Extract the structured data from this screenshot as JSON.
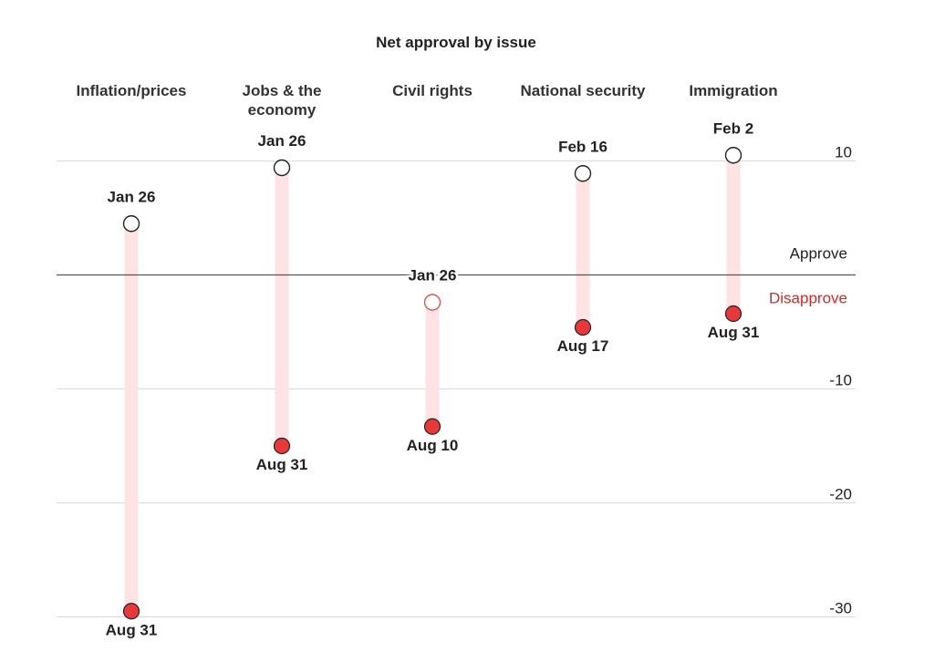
{
  "chart_data": {
    "type": "dumbbell",
    "title": "Net approval by issue",
    "ylim": [
      -30,
      10
    ],
    "yticks": [
      10,
      -10,
      -20,
      -30
    ],
    "grid": true,
    "reference": {
      "value": 0,
      "above_label": "Approve",
      "below_label": "Disapprove"
    },
    "categories": [
      {
        "name": [
          "Inflation/prices"
        ],
        "start": {
          "date": "Jan 26",
          "value": 4.5
        },
        "end": {
          "date": "Aug 31",
          "value": -29.5
        }
      },
      {
        "name": [
          "Jobs & the",
          "economy"
        ],
        "start": {
          "date": "Jan 26",
          "value": 9.4
        },
        "end": {
          "date": "Aug 31",
          "value": -15.0
        }
      },
      {
        "name": [
          "Civil rights"
        ],
        "start": {
          "date": "Jan 26",
          "value": -2.4
        },
        "end": {
          "date": "Aug 10",
          "value": -13.3
        }
      },
      {
        "name": [
          "National security"
        ],
        "start": {
          "date": "Feb 16",
          "value": 8.9
        },
        "end": {
          "date": "Aug 17",
          "value": -4.6
        }
      },
      {
        "name": [
          "Immigration"
        ],
        "start": {
          "date": "Feb 2",
          "value": 10.5
        },
        "end": {
          "date": "Aug 31",
          "value": -3.4
        }
      }
    ]
  },
  "colors": {
    "bar": "#fde3e3",
    "end_fill": "#e8383a",
    "negative_start_stroke": "#e05555",
    "text": "#222222",
    "disapprove": "#d42a2a"
  }
}
